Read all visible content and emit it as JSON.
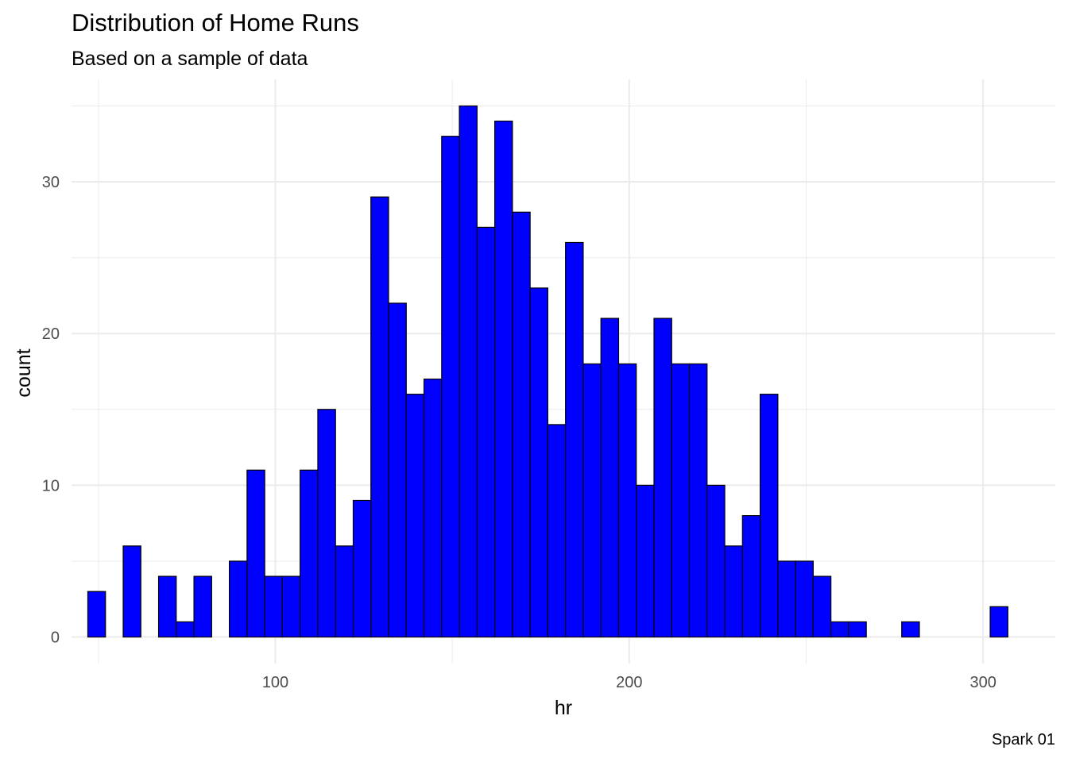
{
  "chart_data": {
    "type": "bar",
    "title": "Distribution of Home Runs",
    "subtitle": "Based on a sample of data",
    "xlabel": "hr",
    "ylabel": "count",
    "caption": "Spark 01",
    "bin_width": 5,
    "bin_starts": [
      47,
      52,
      57,
      62,
      67,
      72,
      77,
      82,
      87,
      92,
      97,
      102,
      107,
      112,
      117,
      122,
      127,
      132,
      137,
      142,
      147,
      152,
      157,
      162,
      167,
      172,
      177,
      182,
      187,
      192,
      197,
      202,
      207,
      212,
      217,
      222,
      227,
      232,
      237,
      242,
      247,
      252,
      257,
      262,
      267,
      272,
      277,
      282,
      287,
      292,
      297,
      302
    ],
    "values": [
      3,
      0,
      6,
      0,
      4,
      1,
      4,
      0,
      5,
      11,
      4,
      4,
      11,
      15,
      6,
      9,
      29,
      22,
      16,
      17,
      33,
      35,
      27,
      34,
      28,
      23,
      14,
      26,
      18,
      21,
      18,
      10,
      21,
      18,
      18,
      10,
      6,
      8,
      16,
      5,
      5,
      4,
      1,
      1,
      0,
      0,
      1,
      0,
      0,
      0,
      0,
      2
    ],
    "xlim": [
      42.4,
      320.4
    ],
    "ylim": [
      -1.75,
      36.75
    ],
    "x_ticks": [
      100,
      200,
      300
    ],
    "y_ticks": [
      0,
      10,
      20,
      30
    ],
    "x_tick_labels": [
      "100",
      "200",
      "300"
    ],
    "y_tick_labels": [
      "0",
      "10",
      "20",
      "30"
    ],
    "bar_fill": "#0000ff",
    "bar_outline": "#000000",
    "grid": true,
    "grid_color": "#ebebeb",
    "axis_text_color": "#4d4d4d",
    "legend": "none"
  }
}
